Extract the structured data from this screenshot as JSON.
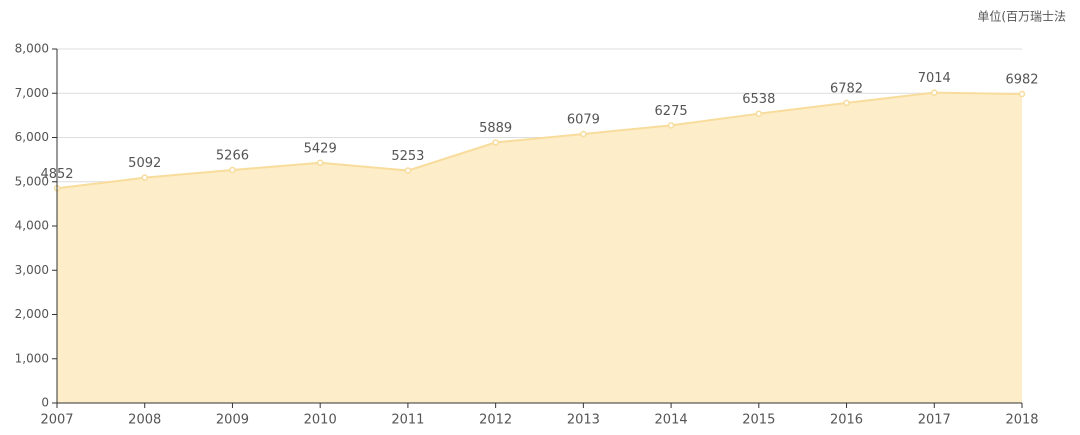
{
  "chart_data": {
    "type": "area",
    "unit": "单位(百万瑞士法",
    "categories": [
      "2007",
      "2008",
      "2009",
      "2010",
      "2011",
      "2012",
      "2013",
      "2014",
      "2015",
      "2016",
      "2017",
      "2018"
    ],
    "values": [
      4852,
      5092,
      5266,
      5429,
      5253,
      5889,
      6079,
      6275,
      6538,
      6782,
      7014,
      6982
    ],
    "color": "#f8dc9c",
    "fill": "#fdedc8",
    "ylim": [
      0,
      8000
    ],
    "yticks": [
      0,
      {
        "value": 1000,
        "label": "1,000"
      },
      {
        "value": 2000,
        "label": "2,000"
      },
      {
        "value": 3000,
        "label": "3,000"
      },
      {
        "value": 4000,
        "label": "4,000"
      },
      {
        "value": 5000,
        "label": "5,000"
      },
      {
        "value": 6000,
        "label": "6,000"
      },
      {
        "value": 7000,
        "label": "7,000"
      },
      {
        "value": 8000,
        "label": "8,000"
      }
    ],
    "grid": true
  }
}
